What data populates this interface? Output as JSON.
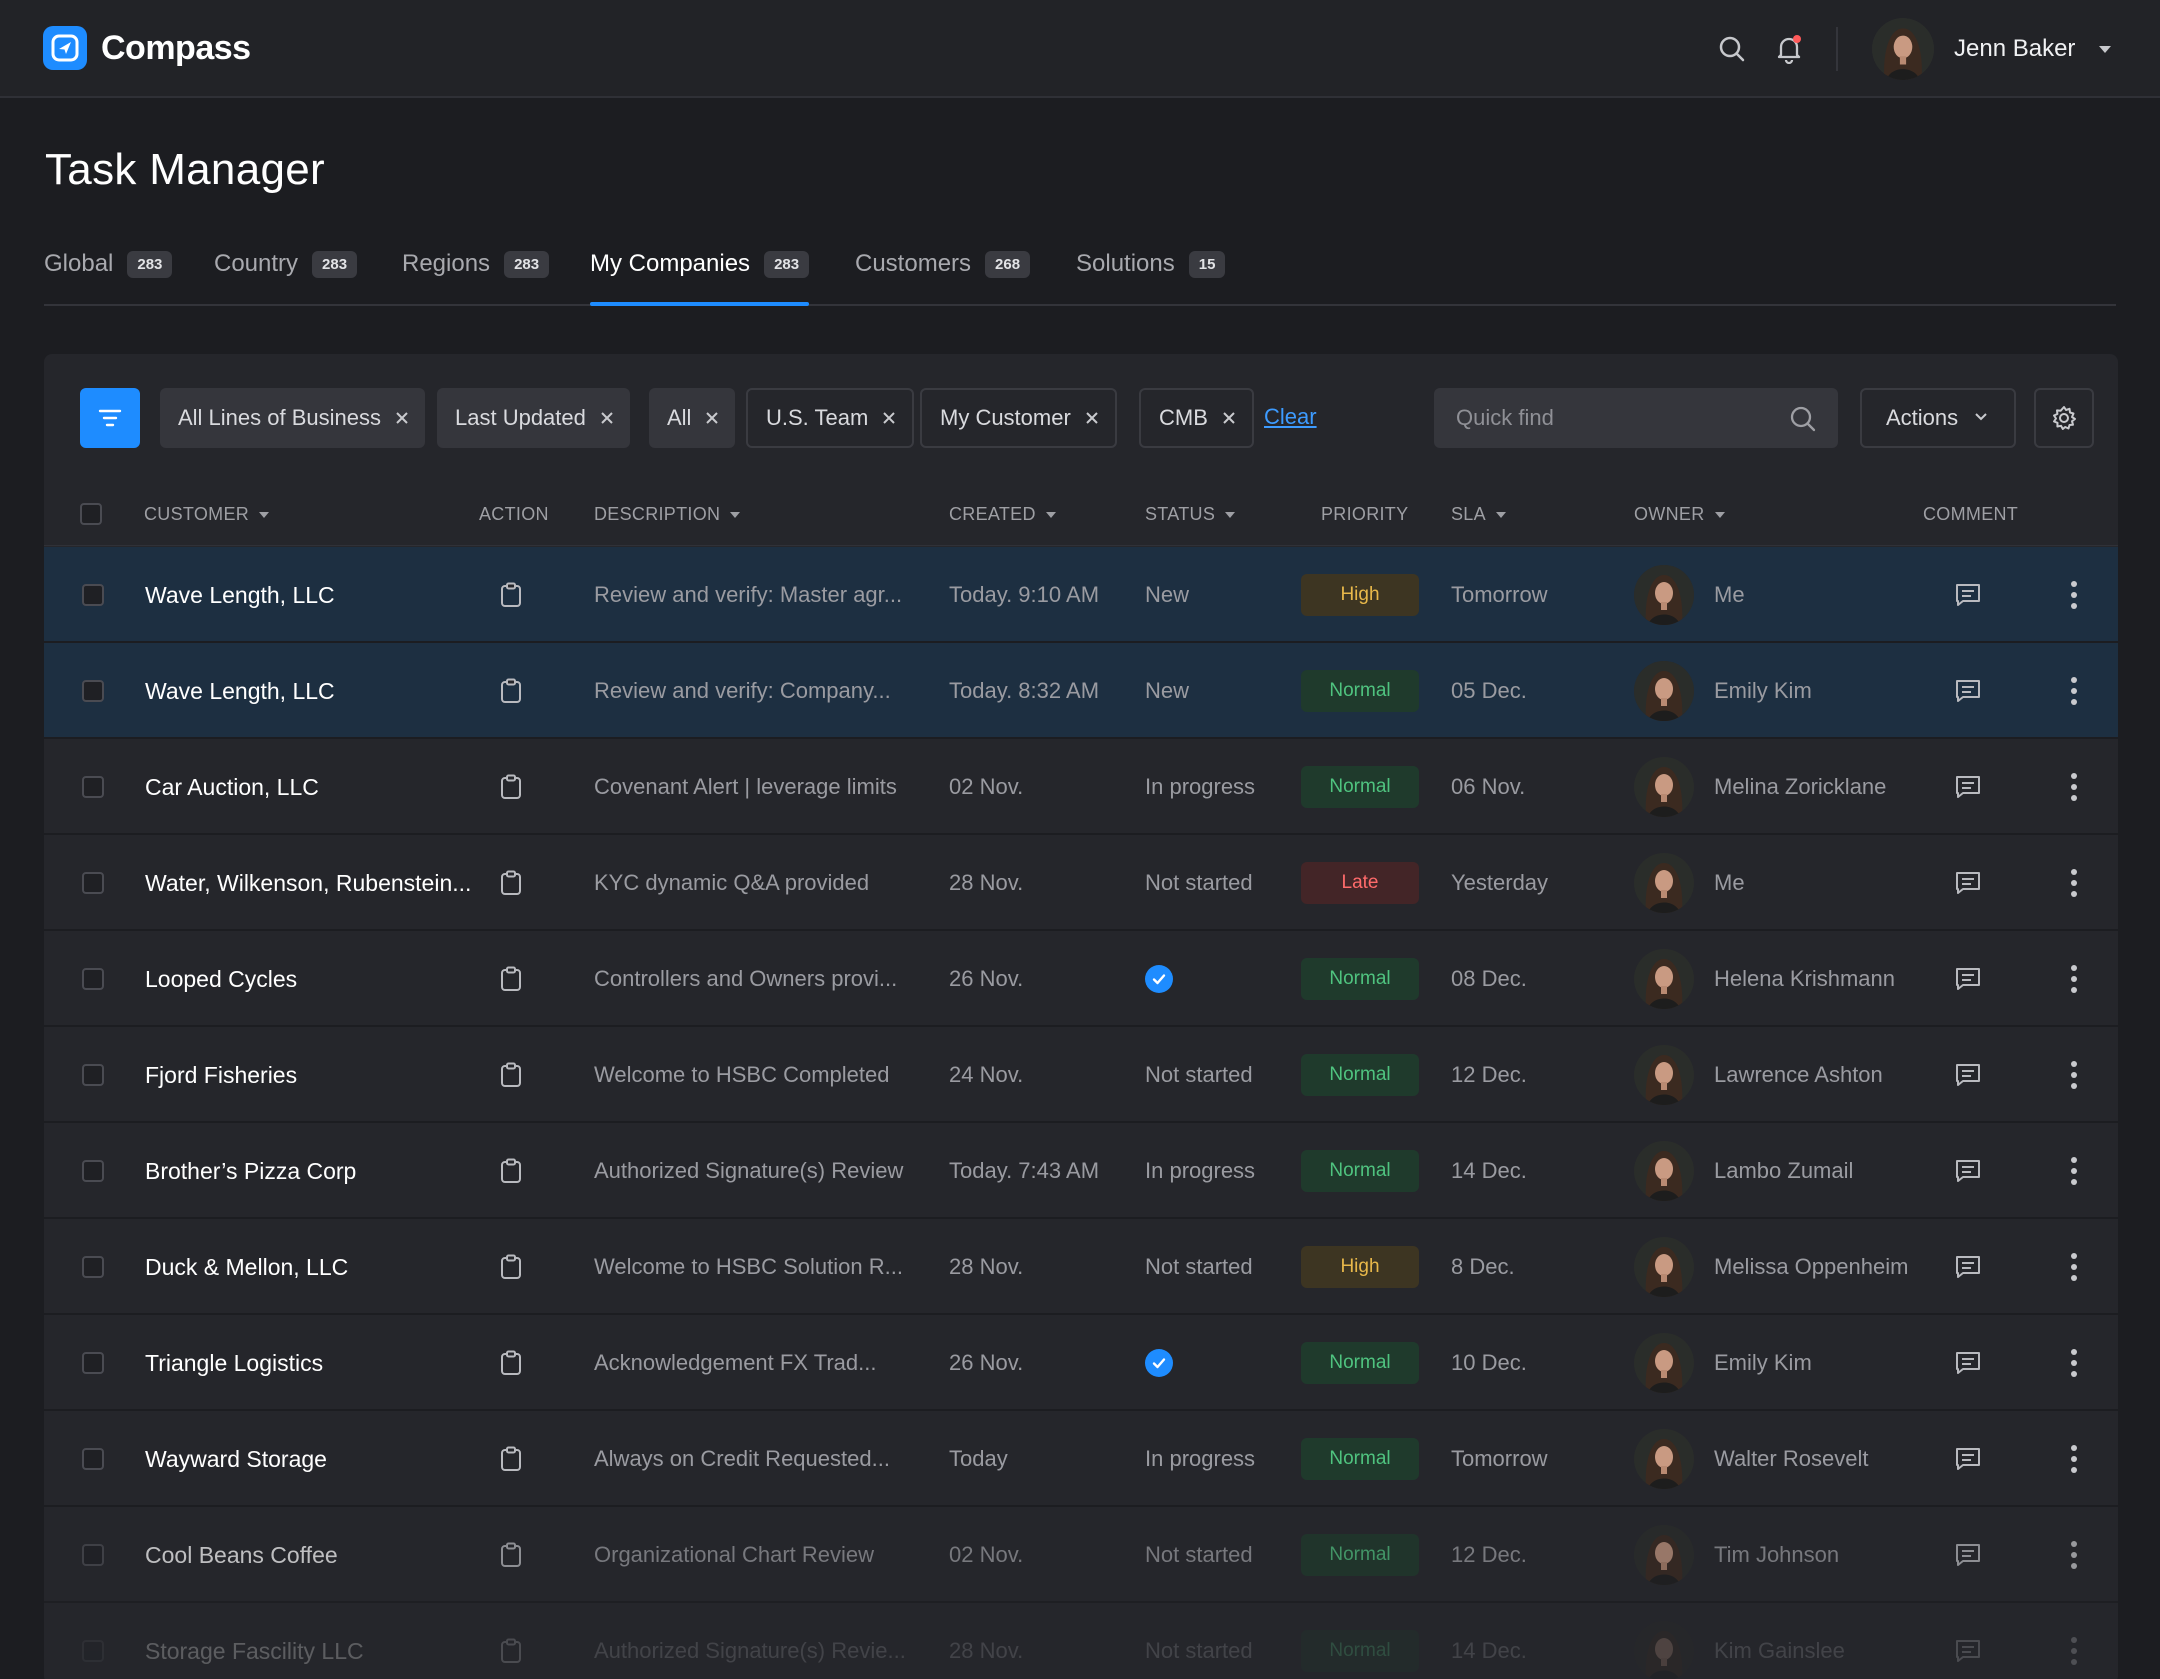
{
  "app": {
    "name": "Compass"
  },
  "user": {
    "name": "Jenn Baker"
  },
  "page": {
    "title": "Task Manager"
  },
  "tabs": [
    {
      "label": "Global",
      "count": "283",
      "active": false
    },
    {
      "label": "Country",
      "count": "283",
      "active": false
    },
    {
      "label": "Regions",
      "count": "283",
      "active": false
    },
    {
      "label": "My Companies",
      "count": "283",
      "active": true
    },
    {
      "label": "Customers",
      "count": "268",
      "active": false
    },
    {
      "label": "Solutions",
      "count": "15",
      "active": false
    }
  ],
  "filters": {
    "chips": [
      "All Lines of Business",
      "Last Updated",
      "All",
      "U.S. Team",
      "My Customer",
      "CMB"
    ],
    "clear_label": "Clear",
    "quickfind_placeholder": "Quick find",
    "actions_label": "Actions"
  },
  "columns": {
    "customer": "CUSTOMER",
    "action": "ACTION",
    "description": "DESCRIPTION",
    "created": "CREATED",
    "status": "STATUS",
    "priority": "PRIORITY",
    "sla": "SLA",
    "owner": "OWNER",
    "comment": "COMMENT"
  },
  "colors": {
    "accent": "#1e8cff",
    "normal": "#4fc37f",
    "high": "#e8b84a",
    "late": "#ff6b6b",
    "selected_row": "#1d2f41"
  },
  "rows": [
    {
      "customer": "Wave Length, LLC",
      "description": "Review and verify: Master agr...",
      "created": "Today. 9:10 AM",
      "status": "New",
      "priority": "High",
      "sla": "Tomorrow",
      "owner": "Me"
    },
    {
      "customer": "Wave Length, LLC",
      "description": "Review and verify: Company...",
      "created": "Today. 8:32 AM",
      "status": "New",
      "priority": "Normal",
      "sla": "05 Dec.",
      "owner": "Emily Kim"
    },
    {
      "customer": "Car Auction, LLC",
      "description": "Covenant Alert | leverage limits",
      "created": "02 Nov.",
      "status": "In progress",
      "priority": "Normal",
      "sla": "06 Nov.",
      "owner": "Melina Zoricklane"
    },
    {
      "customer": "Water, Wilkenson, Rubenstein...",
      "description": "KYC dynamic Q&A provided",
      "created": "28 Nov.",
      "status": "Not started",
      "priority": "Late",
      "sla": "Yesterday",
      "owner": "Me"
    },
    {
      "customer": "Looped Cycles",
      "description": "Controllers and Owners provi...",
      "created": "26 Nov.",
      "status": "",
      "status_icon": "check-circle-icon",
      "priority": "Normal",
      "sla": "08 Dec.",
      "owner": "Helena Krishmann"
    },
    {
      "customer": "Fjord Fisheries",
      "description": "Welcome to HSBC Completed",
      "created": "24 Nov.",
      "status": "Not started",
      "priority": "Normal",
      "sla": "12 Dec.",
      "owner": "Lawrence Ashton"
    },
    {
      "customer": "Brother’s Pizza Corp",
      "description": "Authorized Signature(s) Review",
      "created": "Today. 7:43 AM",
      "status": "In progress",
      "priority": "Normal",
      "sla": "14 Dec.",
      "owner": "Lambo Zumail"
    },
    {
      "customer": "Duck & Mellon, LLC",
      "description": "Welcome to HSBC Solution R...",
      "created": "28 Nov.",
      "status": "Not started",
      "priority": "High",
      "sla": "8 Dec.",
      "owner": "Melissa Oppenheim"
    },
    {
      "customer": "Triangle Logistics",
      "description": "Acknowledgement FX Trad...",
      "created": "26 Nov.",
      "status": "",
      "status_icon": "check-circle-icon",
      "priority": "Normal",
      "sla": "10 Dec.",
      "owner": "Emily Kim"
    },
    {
      "customer": "Wayward Storage",
      "description": "Always on Credit Requested...",
      "created": "Today",
      "status": "In progress",
      "priority": "Normal",
      "sla": "Tomorrow",
      "owner": "Walter Rosevelt"
    },
    {
      "customer": "Cool Beans Coffee",
      "description": "Organizational Chart Review",
      "created": "02 Nov.",
      "status": "Not started",
      "priority": "Normal",
      "sla": "12 Dec.",
      "owner": "Tim Johnson"
    },
    {
      "customer": "Storage Fascility LLC",
      "description": "Authorized Signature(s) Revie...",
      "created": "28 Nov.",
      "status": "Not started",
      "priority": "Normal",
      "sla": "14 Dec.",
      "owner": "Kim Gainslee"
    }
  ]
}
